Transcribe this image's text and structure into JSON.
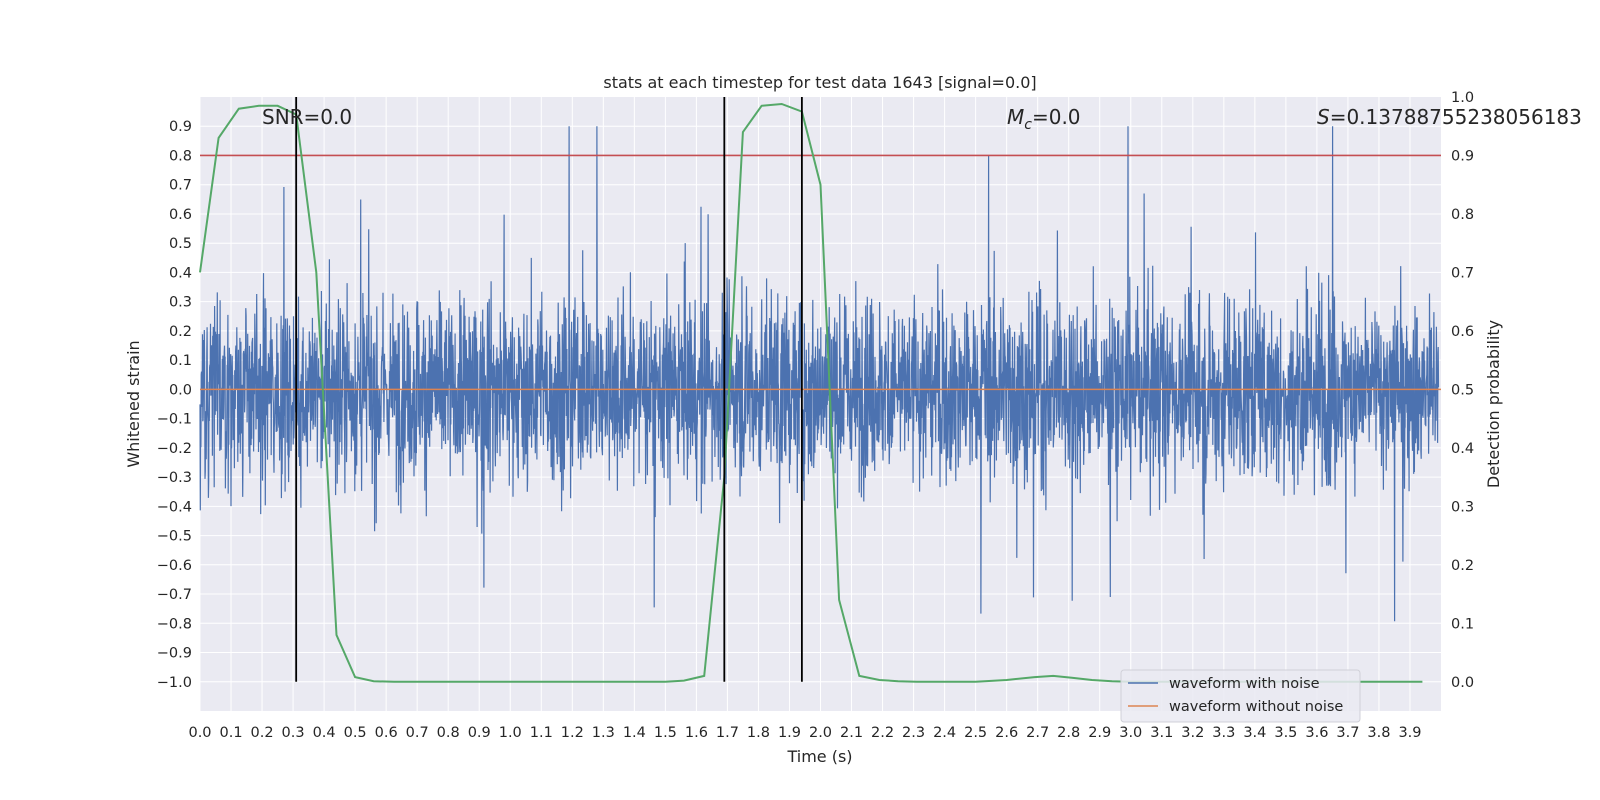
{
  "chart_data": {
    "type": "line",
    "title": "stats at each timestep for test data 1643 [signal=0.0]",
    "xlabel": "Time (s)",
    "ylabel": "Whitened strain",
    "y2label": "Detection probability",
    "xlim": [
      0.0,
      4.0
    ],
    "ylim": [
      -1.1,
      1.0
    ],
    "y2lim": [
      -0.05,
      1.0
    ],
    "x_ticks": [
      "0.0",
      "0.1",
      "0.2",
      "0.3",
      "0.4",
      "0.5",
      "0.6",
      "0.7",
      "0.8",
      "0.9",
      "1.0",
      "1.1",
      "1.2",
      "1.3",
      "1.4",
      "1.5",
      "1.6",
      "1.7",
      "1.8",
      "1.9",
      "2.0",
      "2.1",
      "2.2",
      "2.3",
      "2.4",
      "2.5",
      "2.6",
      "2.7",
      "2.8",
      "2.9",
      "3.0",
      "3.1",
      "3.2",
      "3.3",
      "3.4",
      "3.5",
      "3.6",
      "3.7",
      "3.8",
      "3.9"
    ],
    "y_ticks": [
      "0.9",
      "0.8",
      "0.7",
      "0.6",
      "0.5",
      "0.4",
      "0.3",
      "0.2",
      "0.1",
      "0.0",
      "−0.1",
      "−0.2",
      "−0.3",
      "−0.4",
      "−0.5",
      "−0.6",
      "−0.7",
      "−0.8",
      "−0.9",
      "−1.0"
    ],
    "y2_ticks": [
      "1.0",
      "0.9",
      "0.8",
      "0.7",
      "0.6",
      "0.5",
      "0.4",
      "0.3",
      "0.2",
      "0.1",
      "0.0"
    ],
    "grid": true,
    "legend_position": "lower right",
    "annotations": {
      "snr": "SNR=0.0",
      "mc_symbol": "M",
      "mc_sub": "c",
      "mc_value": "=0.0",
      "s_symbol": "S",
      "s_value": "=0.13788755238056183"
    },
    "series": [
      {
        "name": "waveform with noise",
        "color": "#4c72b0",
        "kind": "noise",
        "amplitude_typical": 0.3,
        "amplitude_max": 1.0
      },
      {
        "name": "waveform without noise",
        "color": "#dd8452",
        "y": 0.0
      }
    ],
    "detection_probability": {
      "color": "#55a868",
      "x": [
        0.0,
        0.06,
        0.125,
        0.19,
        0.25,
        0.31,
        0.375,
        0.44,
        0.5,
        0.56,
        0.625,
        0.69,
        1.0,
        1.5,
        1.56,
        1.625,
        1.69,
        1.75,
        1.81,
        1.875,
        1.94,
        2.0,
        2.06,
        2.125,
        2.19,
        2.25,
        2.31,
        2.5,
        2.6,
        2.69,
        2.75,
        2.81,
        2.875,
        2.94,
        3.0,
        3.5,
        3.94
      ],
      "y": [
        0.7,
        0.93,
        0.98,
        0.985,
        0.985,
        0.97,
        0.7,
        0.08,
        0.008,
        0.001,
        0.0,
        0.0,
        0.0,
        0.0,
        0.002,
        0.01,
        0.35,
        0.94,
        0.985,
        0.988,
        0.975,
        0.85,
        0.14,
        0.01,
        0.003,
        0.001,
        0.0,
        0.0,
        0.003,
        0.008,
        0.01,
        0.007,
        0.003,
        0.001,
        0.0,
        0.0,
        0.0
      ]
    },
    "threshold": {
      "color": "#c44e52",
      "y2": 0.9
    },
    "vertical_markers": {
      "color": "#000000",
      "x": [
        0.31,
        1.69,
        1.94
      ]
    }
  }
}
